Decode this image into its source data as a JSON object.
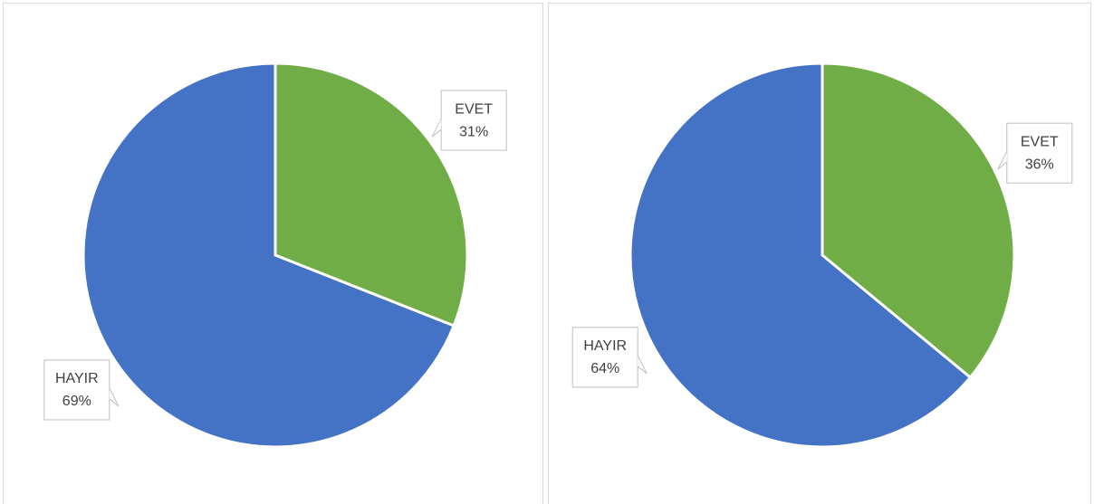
{
  "chart_data": [
    {
      "type": "pie",
      "categories": [
        "EVET",
        "HAYIR"
      ],
      "values": [
        31,
        69
      ],
      "value_labels": [
        "31%",
        "69%"
      ],
      "colors": [
        "#70ad47",
        "#4472c4"
      ]
    },
    {
      "type": "pie",
      "categories": [
        "EVET",
        "HAYIR"
      ],
      "values": [
        36,
        64
      ],
      "value_labels": [
        "36%",
        "64%"
      ],
      "colors": [
        "#70ad47",
        "#4472c4"
      ]
    }
  ]
}
